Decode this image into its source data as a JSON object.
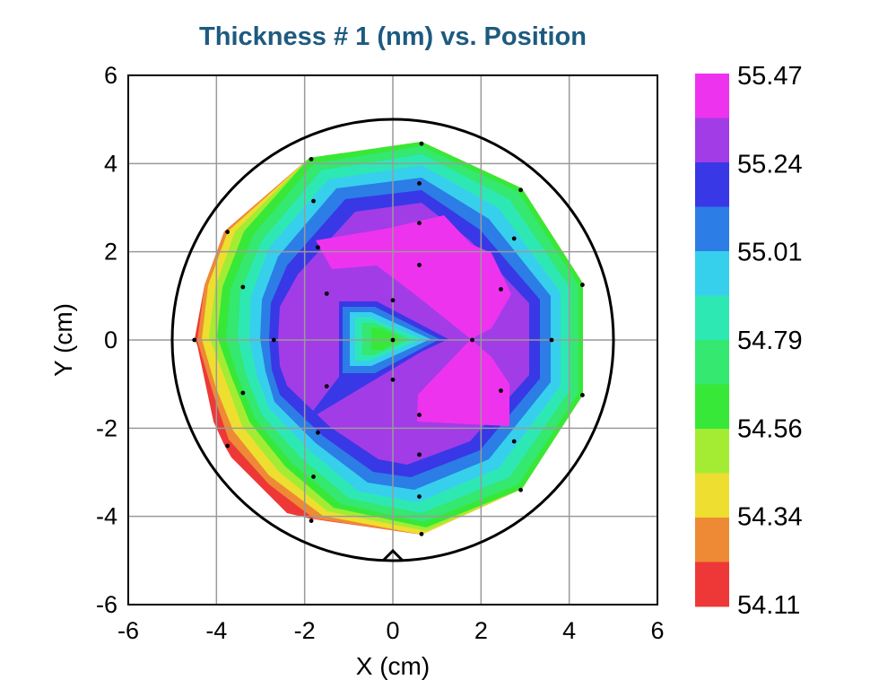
{
  "chart_data": {
    "type": "contour",
    "title": "Thickness # 1 (nm) vs. Position",
    "xlabel": "X (cm)",
    "ylabel": "Y (cm)",
    "xlim": [
      -6,
      6
    ],
    "ylim": [
      -6,
      6
    ],
    "x_ticks": [
      "-6",
      "-4",
      "-2",
      "0",
      "2",
      "4",
      "6"
    ],
    "y_ticks": [
      "-6",
      "-4",
      "-2",
      "0",
      "2",
      "4",
      "6"
    ],
    "grid": true,
    "wafer_radius": 5,
    "colorbar": {
      "labels": [
        "55.47",
        "55.24",
        "55.01",
        "54.79",
        "54.56",
        "54.34",
        "54.11"
      ],
      "colors_top_to_bottom": [
        "#ee33ee",
        "#a23ce6",
        "#3838e6",
        "#2c7de6",
        "#36d0ec",
        "#2ee8b4",
        "#34e870",
        "#38e838",
        "#a4ec34",
        "#eede30",
        "#ee8a36",
        "#ee3838"
      ]
    },
    "measurement_points": [
      [
        0,
        0
      ],
      [
        0,
        0.9
      ],
      [
        -1.5,
        1.05
      ],
      [
        -2.7,
        0
      ],
      [
        -1.5,
        -1.05
      ],
      [
        0,
        -0.9
      ],
      [
        0.6,
        1.7
      ],
      [
        1.8,
        0
      ],
      [
        0.6,
        -1.7
      ],
      [
        2.45,
        1.15
      ],
      [
        2.45,
        -1.15
      ],
      [
        -1.7,
        2.1
      ],
      [
        -1.7,
        -2.1
      ],
      [
        -3.4,
        1.2
      ],
      [
        -3.4,
        -1.2
      ],
      [
        -4.5,
        0
      ],
      [
        3.6,
        0
      ],
      [
        0.6,
        2.65
      ],
      [
        0.6,
        -2.6
      ],
      [
        2.75,
        2.3
      ],
      [
        2.75,
        -2.3
      ],
      [
        0.6,
        3.55
      ],
      [
        0.6,
        -3.55
      ],
      [
        -1.8,
        3.15
      ],
      [
        -1.8,
        -3.1
      ],
      [
        -3.75,
        2.45
      ],
      [
        -3.75,
        -2.4
      ],
      [
        4.3,
        1.25
      ],
      [
        4.3,
        -1.25
      ],
      [
        2.9,
        3.4
      ],
      [
        2.9,
        -3.4
      ],
      [
        0.65,
        4.45
      ],
      [
        0.65,
        -4.4
      ],
      [
        -1.85,
        4.1
      ],
      [
        -1.85,
        -4.1
      ]
    ]
  }
}
